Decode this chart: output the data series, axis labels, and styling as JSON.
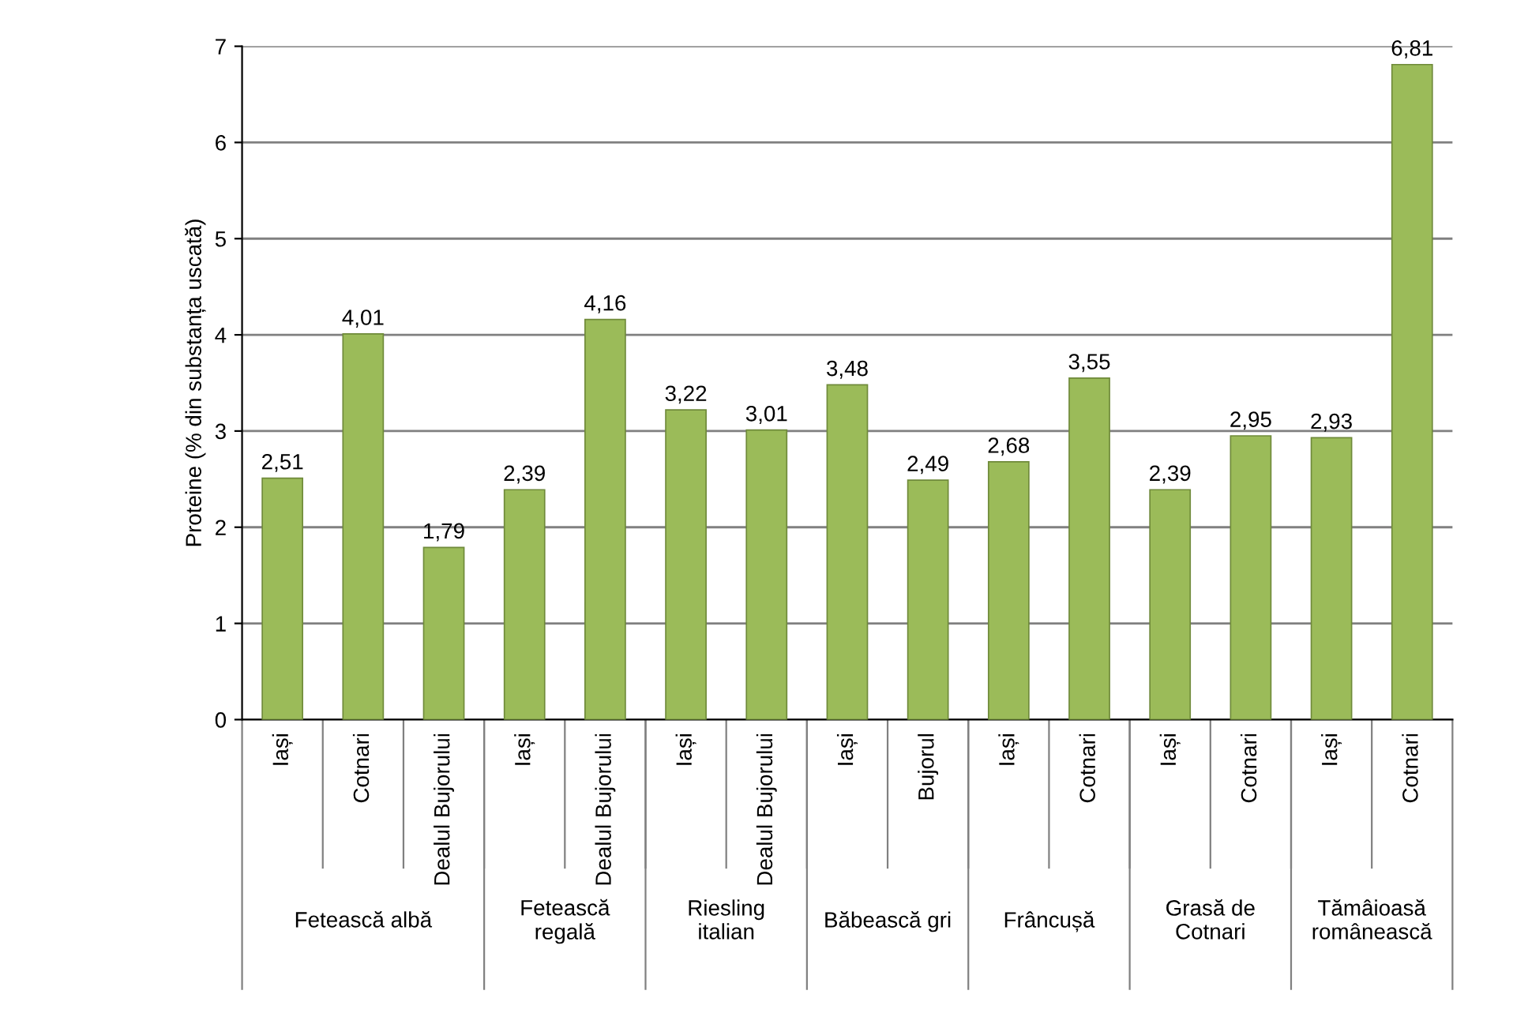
{
  "chart_data": {
    "type": "bar",
    "ylabel": "Proteine (% din substanța uscată)",
    "categories": [
      "Iași",
      "Cotnari",
      "Dealul Bujorului",
      "Iași",
      "Dealul Bujorului",
      "Iași",
      "Dealul Bujorului",
      "Iași",
      "Bujorul",
      "Iași",
      "Cotnari",
      "Iași",
      "Cotnari",
      "Iași",
      "Cotnari"
    ],
    "values": [
      2.51,
      4.01,
      1.79,
      2.39,
      4.16,
      3.22,
      3.01,
      3.48,
      2.49,
      2.68,
      3.55,
      2.39,
      2.95,
      2.93,
      6.81
    ],
    "value_labels": [
      "2,51",
      "4,01",
      "1,79",
      "2,39",
      "4,16",
      "3,22",
      "3,01",
      "3,48",
      "2,49",
      "2,68",
      "3,55",
      "2,39",
      "2,95",
      "2,93",
      "6,81"
    ],
    "color": "#9bbb59",
    "ylim": [
      0,
      7
    ],
    "yticks": [
      0,
      1,
      2,
      3,
      4,
      5,
      6,
      7
    ],
    "grid": "y",
    "annotations": [
      "Fetească albă",
      "Fetească\nregală",
      "Riesling\nitalian",
      "Băbească gri",
      "Frâncușă",
      "Grasă de\nCotnari",
      "Tămâioasă\nromânească"
    ]
  }
}
